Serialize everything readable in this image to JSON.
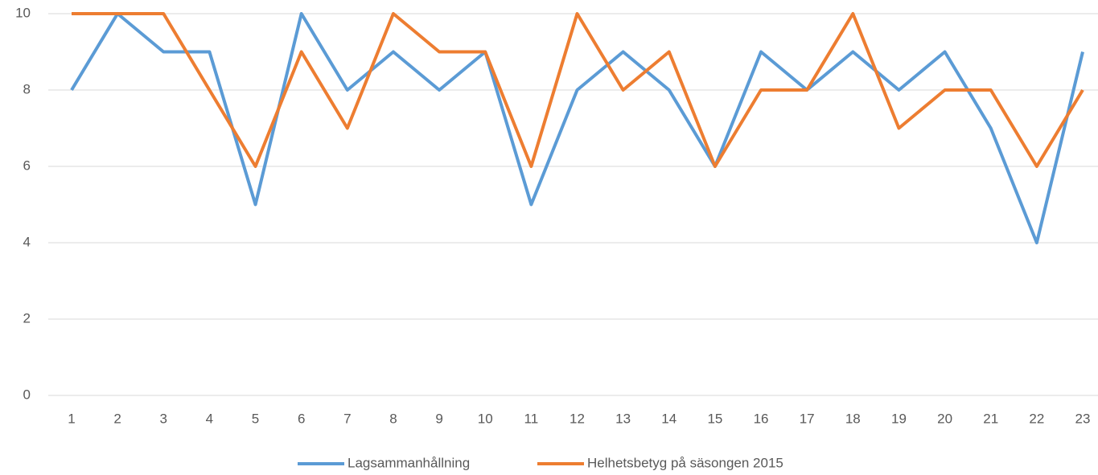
{
  "chart_data": {
    "type": "line",
    "categories": [
      "1",
      "2",
      "3",
      "4",
      "5",
      "6",
      "7",
      "8",
      "9",
      "10",
      "11",
      "12",
      "13",
      "14",
      "15",
      "16",
      "17",
      "18",
      "19",
      "20",
      "21",
      "22",
      "23"
    ],
    "series": [
      {
        "name": "Lagsammanhållning",
        "color": "#5b9bd5",
        "values": [
          8,
          10,
          9,
          9,
          5,
          10,
          8,
          9,
          8,
          9,
          5,
          8,
          9,
          8,
          6,
          9,
          8,
          9,
          8,
          9,
          7,
          4,
          9
        ]
      },
      {
        "name": "Helhetsbetyg på säsongen 2015",
        "color": "#ed7d31",
        "values": [
          10,
          10,
          10,
          8,
          6,
          9,
          7,
          10,
          9,
          9,
          6,
          10,
          8,
          9,
          6,
          8,
          8,
          10,
          7,
          8,
          8,
          6,
          8
        ]
      }
    ],
    "ylim": [
      0,
      10
    ],
    "yticks": [
      0,
      2,
      4,
      6,
      8,
      10
    ],
    "grid": true,
    "legend": "bottom"
  }
}
